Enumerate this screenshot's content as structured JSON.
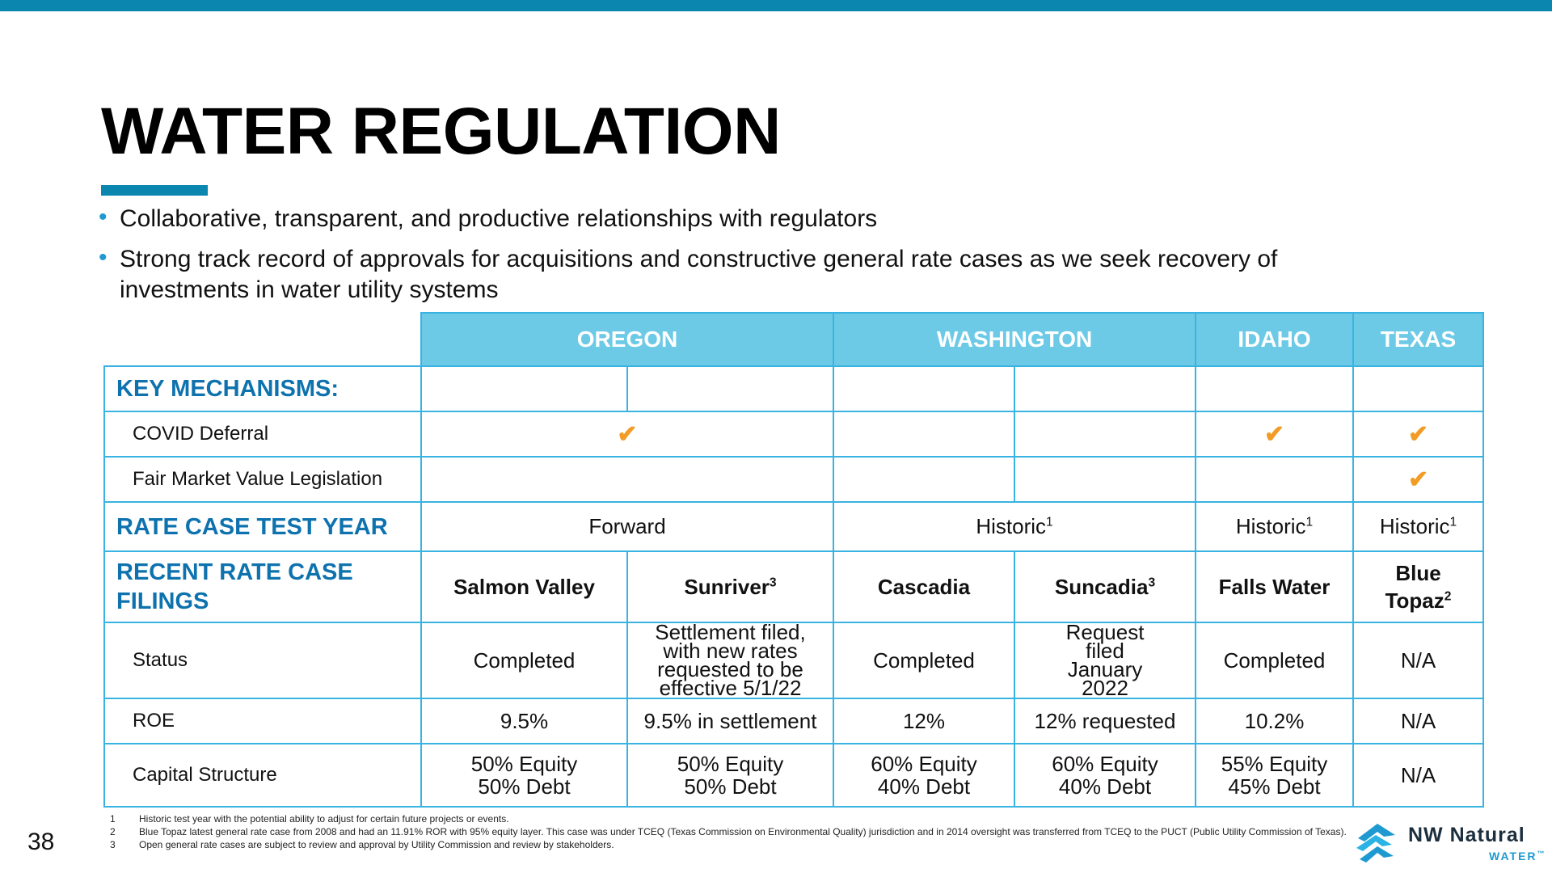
{
  "page": {
    "title": "WATER REGULATION",
    "page_number": "38",
    "accent_color": "#0b86ae",
    "header_fill": "#6dcae6",
    "check_color": "#f29b25"
  },
  "bullets": [
    "Collaborative, transparent, and productive relationships with regulators",
    "Strong track record of approvals for acquisitions and constructive general rate cases as we seek recovery of investments in water utility systems"
  ],
  "table": {
    "regions": [
      "OREGON",
      "WASHINGTON",
      "IDAHO",
      "TEXAS"
    ],
    "sections": {
      "key_mechanisms": "KEY MECHANISMS:",
      "rate_case_test_year": "RATE CASE TEST YEAR",
      "recent_rate_case_filings": "RECENT RATE CASE FILINGS"
    },
    "rows": {
      "covid_deferral": "COVID Deferral",
      "fair_market_value": "Fair Market Value Legislation",
      "status": "Status",
      "roe": "ROE",
      "capital_structure": "Capital Structure"
    },
    "check_icon": "checkmark-icon",
    "check_glyph": "✔",
    "test_year": {
      "oregon": "Forward",
      "washington": "Historic",
      "idaho": "Historic",
      "texas": "Historic",
      "footnote_ref": "1"
    },
    "filings": [
      {
        "name": "Salmon Valley",
        "sup": "",
        "status": "Completed",
        "roe": "9.5%",
        "equity": "50% Equity",
        "debt": "50% Debt"
      },
      {
        "name": "Sunriver",
        "sup": "3",
        "status": "Settlement filed, with new rates requested to be effective 5/1/22",
        "roe": "9.5% in settlement",
        "equity": "50% Equity",
        "debt": "50% Debt"
      },
      {
        "name": "Cascadia",
        "sup": "",
        "status": "Completed",
        "roe": "12%",
        "equity": "60% Equity",
        "debt": "40% Debt"
      },
      {
        "name": "Suncadia",
        "sup": "3",
        "status": "Request filed January 2022",
        "roe": "12% requested",
        "equity": "60% Equity",
        "debt": "40% Debt"
      },
      {
        "name": "Falls Water",
        "sup": "",
        "status": "Completed",
        "roe": "10.2%",
        "equity": "55% Equity",
        "debt": "45% Debt"
      },
      {
        "name": "Blue Topaz",
        "sup": "2",
        "status": "N/A",
        "roe": "N/A",
        "capital": "N/A"
      }
    ]
  },
  "footnotes": [
    {
      "num": "1",
      "text": "Historic test year with the potential ability to adjust for certain future projects or events."
    },
    {
      "num": "2",
      "text": "Blue Topaz latest general rate case from 2008 and had an 11.91% ROR with 95% equity layer. This case was under TCEQ (Texas Commission on Environmental Quality) jurisdiction and in 2014 oversight was transferred from TCEQ to the PUCT (Public Utility Commission of Texas)."
    },
    {
      "num": "3",
      "text": "Open general rate cases are subject to review and approval by Utility Commission and review by stakeholders."
    }
  ],
  "logo": {
    "name": "NW Natural",
    "sub": "WATER",
    "trademark": "™"
  }
}
